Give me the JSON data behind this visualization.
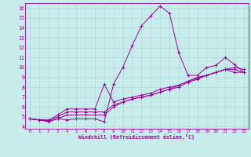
{
  "xlabel": "Windchill (Refroidissement éolien,°C)",
  "bg_color": "#c8ecec",
  "line_color": "#990099",
  "grid_color": "#aad4d4",
  "xlim": [
    -0.5,
    23.5
  ],
  "ylim": [
    3.8,
    16.5
  ],
  "xticks": [
    0,
    1,
    2,
    3,
    4,
    5,
    6,
    7,
    8,
    9,
    10,
    11,
    12,
    13,
    14,
    15,
    16,
    17,
    18,
    19,
    20,
    21,
    22,
    23
  ],
  "yticks": [
    4,
    5,
    6,
    7,
    8,
    9,
    10,
    11,
    12,
    13,
    14,
    15,
    16
  ],
  "line1_x": [
    0,
    1,
    2,
    3,
    4,
    5,
    6,
    7,
    8,
    9,
    10,
    11,
    12,
    13,
    14,
    15,
    16,
    17,
    18,
    19,
    20,
    21,
    22,
    23
  ],
  "line1_y": [
    4.8,
    4.7,
    4.6,
    4.8,
    4.7,
    4.8,
    4.8,
    4.8,
    4.5,
    8.3,
    10.0,
    12.2,
    14.2,
    15.2,
    16.2,
    15.5,
    11.5,
    9.2,
    9.2,
    10.0,
    10.2,
    11.0,
    10.3,
    9.5
  ],
  "line2_x": [
    0,
    1,
    2,
    3,
    4,
    5,
    6,
    7,
    8,
    9,
    10,
    11,
    12,
    13,
    14,
    15,
    16,
    17,
    18,
    19,
    20,
    21,
    22,
    23
  ],
  "line2_y": [
    4.8,
    4.7,
    4.7,
    5.0,
    5.5,
    5.5,
    5.5,
    5.5,
    5.5,
    6.2,
    6.5,
    6.8,
    7.0,
    7.2,
    7.5,
    7.8,
    8.0,
    8.5,
    8.8,
    9.2,
    9.5,
    9.8,
    9.8,
    9.5
  ],
  "line3_x": [
    0,
    1,
    2,
    3,
    4,
    5,
    6,
    7,
    8,
    9,
    10,
    11,
    12,
    13,
    14,
    15,
    16,
    17,
    18,
    19,
    20,
    21,
    22,
    23
  ],
  "line3_y": [
    4.8,
    4.7,
    4.6,
    5.2,
    5.8,
    5.8,
    5.8,
    5.8,
    8.3,
    6.5,
    6.8,
    7.0,
    7.2,
    7.4,
    7.8,
    8.0,
    8.2,
    8.6,
    8.9,
    9.2,
    9.5,
    9.8,
    10.0,
    9.8
  ],
  "line4_x": [
    0,
    1,
    2,
    3,
    4,
    5,
    6,
    7,
    8,
    9,
    10,
    11,
    12,
    13,
    14,
    15,
    16,
    17,
    18,
    19,
    20,
    21,
    22,
    23
  ],
  "line4_y": [
    4.8,
    4.7,
    4.5,
    4.8,
    5.2,
    5.2,
    5.2,
    5.2,
    5.2,
    6.0,
    6.5,
    6.8,
    7.0,
    7.2,
    7.5,
    7.8,
    8.2,
    8.6,
    9.0,
    9.2,
    9.5,
    9.8,
    9.5,
    9.5
  ]
}
